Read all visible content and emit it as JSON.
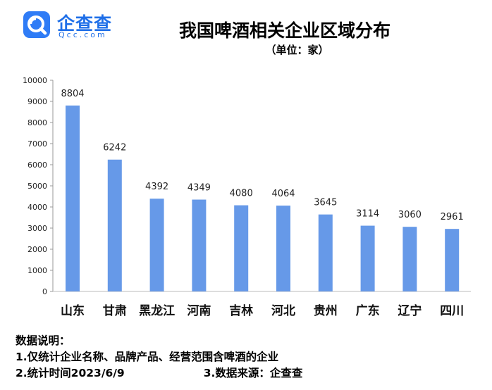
{
  "logo": {
    "name": "企查查",
    "sub": "Qcc.com"
  },
  "title": "我国啤酒相关企业区域分布",
  "unit": "（单位：家）",
  "chart_data": {
    "type": "bar",
    "categories": [
      "山东",
      "甘肃",
      "黑龙江",
      "河南",
      "吉林",
      "河北",
      "贵州",
      "广东",
      "辽宁",
      "四川"
    ],
    "values": [
      8804,
      6242,
      4392,
      4349,
      4080,
      4064,
      3645,
      3114,
      3060,
      2961
    ],
    "ylim": [
      0,
      10000
    ],
    "yticks": [
      0,
      1000,
      2000,
      3000,
      4000,
      5000,
      6000,
      7000,
      8000,
      9000,
      10000
    ],
    "grid": false,
    "bar_color": "#6699e8"
  },
  "notes": {
    "heading": "数据说明：",
    "line1": "1.仅统计企业名称、品牌产品、经营范围含啤酒的企业",
    "line2a": "2.统计时间2023/6/9",
    "line2b": "3.数据来源：企查查"
  }
}
